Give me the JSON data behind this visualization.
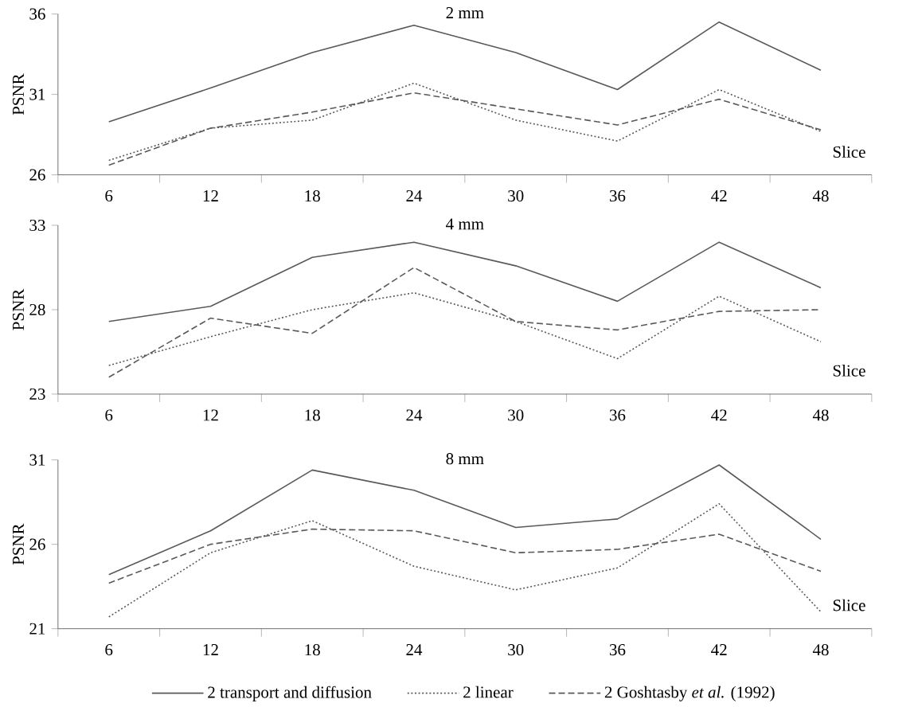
{
  "chart_data": [
    {
      "type": "line",
      "title": "2 mm",
      "ylabel": "PSNR",
      "xlabel": "Slice",
      "categories": [
        "6",
        "12",
        "18",
        "24",
        "30",
        "36",
        "42",
        "48"
      ],
      "ylim": [
        26,
        36
      ],
      "yticks": [
        26,
        31,
        36
      ],
      "grid": false,
      "marker": "none",
      "series": [
        {
          "color": "#595959",
          "line_style": "solid",
          "values": [
            29.3,
            31.4,
            33.6,
            35.3,
            33.6,
            31.3,
            35.5,
            32.5
          ]
        },
        {
          "color": "#595959",
          "line_style": "dotted",
          "values": [
            26.9,
            28.9,
            29.4,
            31.7,
            29.4,
            28.1,
            31.3,
            28.7
          ]
        },
        {
          "color": "#595959",
          "line_style": "dashed",
          "values": [
            26.6,
            28.9,
            29.9,
            31.1,
            30.1,
            29.1,
            30.7,
            28.8
          ]
        }
      ]
    },
    {
      "type": "line",
      "title": "4 mm",
      "ylabel": "PSNR",
      "xlabel": "Slice",
      "categories": [
        "6",
        "12",
        "18",
        "24",
        "30",
        "36",
        "42",
        "48"
      ],
      "ylim": [
        23,
        33
      ],
      "yticks": [
        23,
        28,
        33
      ],
      "grid": false,
      "marker": "none",
      "series": [
        {
          "color": "#595959",
          "line_style": "solid",
          "values": [
            27.3,
            28.2,
            31.1,
            32.0,
            30.6,
            28.5,
            32.0,
            29.3
          ]
        },
        {
          "color": "#595959",
          "line_style": "dotted",
          "values": [
            24.7,
            26.4,
            28.0,
            29.0,
            27.3,
            25.1,
            28.8,
            26.1
          ]
        },
        {
          "color": "#595959",
          "line_style": "dashed",
          "values": [
            24.0,
            27.5,
            26.6,
            30.5,
            27.3,
            26.8,
            27.9,
            28.0
          ]
        }
      ]
    },
    {
      "type": "line",
      "title": "8 mm",
      "ylabel": "PSNR",
      "xlabel": "Slice",
      "categories": [
        "6",
        "12",
        "18",
        "24",
        "30",
        "36",
        "42",
        "48"
      ],
      "ylim": [
        21,
        31
      ],
      "yticks": [
        21,
        26,
        31
      ],
      "grid": false,
      "marker": "none",
      "legend": "bottom",
      "series": [
        {
          "name": "2 transport and diffusion",
          "color": "#595959",
          "line_style": "solid",
          "values": [
            24.2,
            26.8,
            30.4,
            29.2,
            27.0,
            27.5,
            30.7,
            26.3
          ]
        },
        {
          "name": "2 linear",
          "color": "#595959",
          "line_style": "dotted",
          "values": [
            21.7,
            25.5,
            27.4,
            24.7,
            23.3,
            24.6,
            28.4,
            22.0
          ]
        },
        {
          "name": "2 Goshtasby *et al.* (1992)",
          "color": "#595959",
          "line_style": "dashed",
          "values": [
            23.7,
            26.0,
            26.9,
            26.8,
            25.5,
            25.7,
            26.6,
            24.4
          ]
        }
      ]
    }
  ]
}
